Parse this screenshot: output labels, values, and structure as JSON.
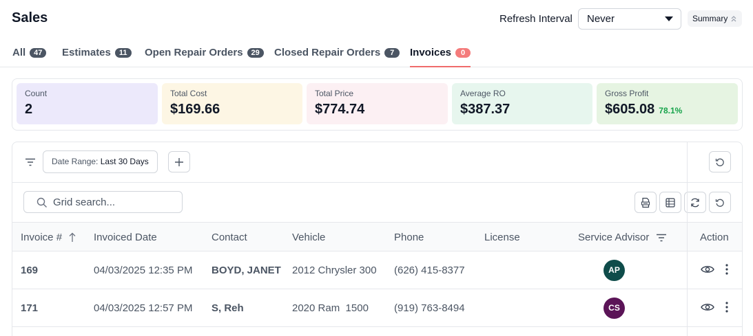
{
  "header": {
    "title": "Sales",
    "refresh_label": "Refresh Interval",
    "refresh_value": "Never",
    "summary_label": "Summary"
  },
  "tabs": [
    {
      "label": "All",
      "count": "47"
    },
    {
      "label": "Estimates",
      "count": "11"
    },
    {
      "label": "Open Repair Orders",
      "count": "29"
    },
    {
      "label": "Closed Repair Orders",
      "count": "7"
    },
    {
      "label": "Invoices",
      "count": "0"
    }
  ],
  "summary_cards": [
    {
      "label": "Count",
      "value": "2",
      "bg": "#ece9fb"
    },
    {
      "label": "Total Cost",
      "value": "$169.66",
      "bg": "#fdf6e4"
    },
    {
      "label": "Total Price",
      "value": "$774.74",
      "bg": "#fcf0f3"
    },
    {
      "label": "Average RO",
      "value": "$387.37",
      "bg": "#e7f6ee"
    },
    {
      "label": "Gross Profit",
      "value": "$605.08",
      "pct": "78.1%",
      "bg": "#e6f4e2"
    }
  ],
  "filters": {
    "date_range_label": "Date Range:",
    "date_range_value": "Last 30 Days"
  },
  "search": {
    "placeholder": "Grid search..."
  },
  "table": {
    "columns": [
      "Invoice #",
      "Invoiced Date",
      "Contact",
      "Vehicle",
      "Phone",
      "License",
      "Service Advisor",
      "Action"
    ],
    "rows": [
      {
        "invoice": "169",
        "date": "04/03/2025 12:35 PM",
        "contact": "BOYD, JANET",
        "vehicle": "2012 Chrysler 300",
        "phone": "(626) 415-8377",
        "license": "",
        "advisor": "AP",
        "advisor_color": "#0f4c4a"
      },
      {
        "invoice": "171",
        "date": "04/03/2025 12:57 PM",
        "contact": "S, Reh",
        "vehicle": "2020 Ram  1500",
        "phone": "(919) 763-8494",
        "license": "",
        "advisor": "CS",
        "advisor_color": "#5b1457"
      }
    ]
  }
}
